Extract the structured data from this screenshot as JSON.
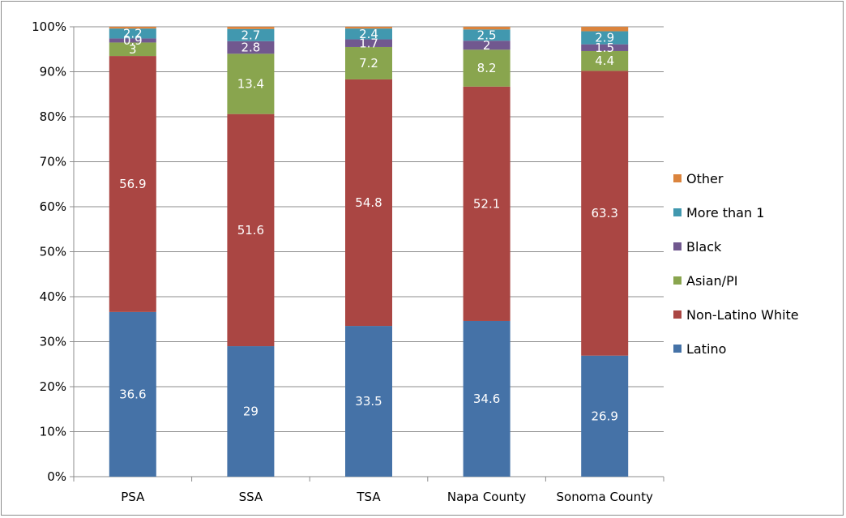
{
  "chart_data": {
    "type": "bar",
    "stacked": true,
    "percent_stacked": true,
    "categories": [
      "PSA",
      "SSA",
      "TSA",
      "Napa County",
      "Sonoma County"
    ],
    "series": [
      {
        "name": "Latino",
        "color": "#4572A7",
        "values": [
          36.6,
          29,
          33.5,
          34.6,
          26.9
        ]
      },
      {
        "name": "Non-Latino White",
        "color": "#AA4643",
        "values": [
          56.9,
          51.6,
          54.8,
          52.1,
          63.3
        ]
      },
      {
        "name": "Asian/PI",
        "color": "#89A54E",
        "values": [
          3,
          13.4,
          7.2,
          8.2,
          4.4
        ]
      },
      {
        "name": "Black",
        "color": "#71588F",
        "values": [
          0.9,
          2.8,
          1.7,
          2,
          1.5
        ]
      },
      {
        "name": "More than 1",
        "color": "#4198AF",
        "values": [
          2.2,
          2.7,
          2.4,
          2.5,
          2.9
        ]
      },
      {
        "name": "Other",
        "color": "#DB843D",
        "values": [
          0.4,
          0.5,
          0.4,
          0.6,
          1.0
        ]
      }
    ],
    "data_labels": {
      "Latino": [
        "36.6",
        "29",
        "33.5",
        "34.6",
        "26.9"
      ],
      "Non-Latino White": [
        "56.9",
        "51.6",
        "54.8",
        "52.1",
        "63.3"
      ],
      "Asian/PI": [
        "3",
        "13.4",
        "7.2",
        "8.2",
        "4.4"
      ],
      "Black": [
        "0.9",
        "2.8",
        "1.7",
        "2",
        "1.5"
      ],
      "More than 1": [
        "2.2",
        "2.7",
        "2.4",
        "2.5",
        "2.9"
      ]
    },
    "yticks": [
      "0%",
      "10%",
      "20%",
      "30%",
      "40%",
      "50%",
      "60%",
      "70%",
      "80%",
      "90%",
      "100%"
    ],
    "ylim": [
      0,
      100
    ],
    "title": "",
    "xlabel": "",
    "ylabel": "",
    "grid": true,
    "legend_position": "right",
    "legend_order": [
      "Other",
      "More than 1",
      "Black",
      "Asian/PI",
      "Non-Latino White",
      "Latino"
    ]
  }
}
